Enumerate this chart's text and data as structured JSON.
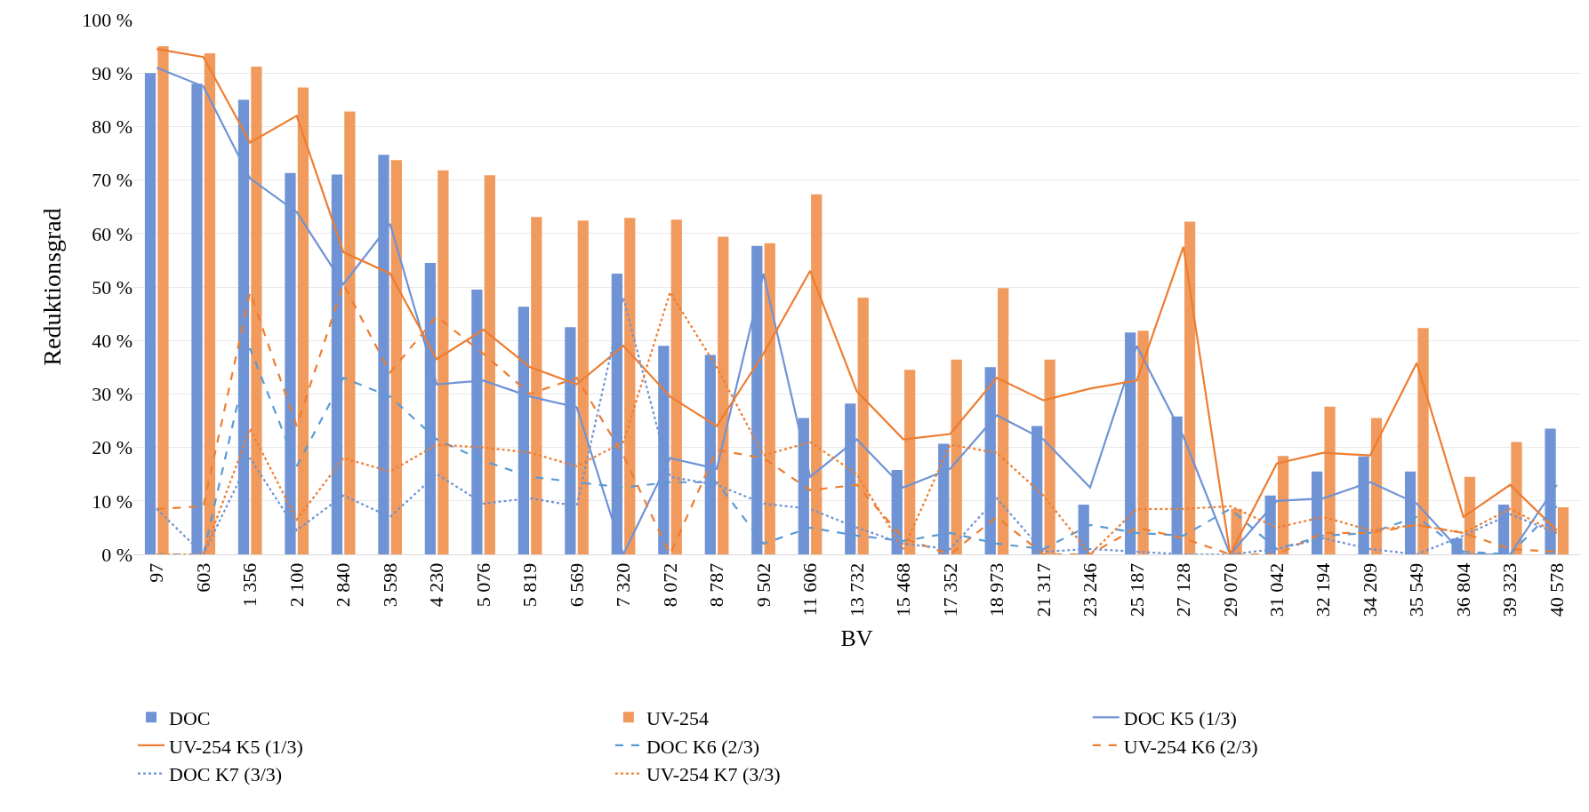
{
  "chart_data": {
    "type": "bar",
    "xlabel": "BV",
    "ylabel": "Reduktionsgrad",
    "categories": [
      "97",
      "603",
      "1 356",
      "2 100",
      "2 840",
      "3 598",
      "4 230",
      "5 076",
      "5 819",
      "6 569",
      "7 320",
      "8 072",
      "8 787",
      "9 502",
      "11 606",
      "13 732",
      "15 468",
      "17 352",
      "18 973",
      "21 317",
      "23 246",
      "25 187",
      "27 128",
      "29 070",
      "31 042",
      "32 194",
      "34 209",
      "35 549",
      "36 804",
      "39 323",
      "40 578"
    ],
    "series": [
      {
        "name": "DOC",
        "color": "#6f93d4",
        "values": [
          90,
          88,
          85,
          71.3,
          71,
          74.7,
          54.5,
          49.5,
          46.3,
          42.5,
          52.5,
          39,
          37.3,
          57.7,
          25.5,
          28.2,
          15.8,
          20.7,
          35,
          24,
          9.3,
          41.5,
          25.8,
          0,
          11,
          15.5,
          18.3,
          15.5,
          3,
          9.3,
          23.5
        ]
      },
      {
        "name": "UV-254",
        "color": "#f19a5e",
        "values": [
          95,
          93.7,
          91.2,
          87.3,
          82.8,
          73.7,
          71.8,
          70.9,
          63.1,
          62.4,
          62.9,
          62.6,
          59.4,
          58.2,
          67.3,
          48,
          34.5,
          36.4,
          49.8,
          36.4,
          0,
          41.8,
          62.2,
          8.5,
          18.4,
          27.6,
          25.5,
          42.3,
          14.5,
          21,
          8.8
        ]
      },
      {
        "name": "DOC K5 (1/3)",
        "type": "line",
        "line_style": "solid",
        "color": "#6f93d4",
        "values": [
          91,
          87.5,
          70.3,
          64,
          50.5,
          61.8,
          31.8,
          32.5,
          29.5,
          27.5,
          0,
          18,
          16,
          52.5,
          14.5,
          21.5,
          12.5,
          16,
          26,
          21.5,
          12.5,
          39,
          22,
          0,
          10,
          10.5,
          13.5,
          9.5,
          0,
          0,
          13
        ]
      },
      {
        "name": "UV-254 K5 (1/3)",
        "type": "line",
        "line_style": "solid",
        "color": "#ed7d31",
        "values": [
          94.5,
          93,
          77,
          82,
          56.5,
          52.5,
          36.5,
          42,
          35,
          31.8,
          39,
          29.5,
          24,
          37.5,
          53,
          30.5,
          21.5,
          22.5,
          33,
          28.8,
          31,
          32.5,
          57.5,
          0,
          17,
          19,
          18.5,
          35.8,
          7,
          13,
          4.5
        ]
      },
      {
        "name": "DOC K6 (2/3)",
        "type": "line",
        "line_style": "dashed",
        "color": "#5b9bd5",
        "values": [
          0,
          0,
          38.5,
          16.5,
          33,
          29.5,
          21.5,
          17.5,
          14.5,
          13.5,
          12.5,
          13.5,
          13.5,
          2,
          5,
          3.5,
          2.5,
          4,
          2,
          1,
          5.5,
          4,
          3.5,
          8.5,
          1,
          3.5,
          4,
          7,
          0.5,
          0,
          9
        ]
      },
      {
        "name": "UV-254 K6 (2/3)",
        "type": "line",
        "line_style": "dashed",
        "color": "#ed7d31",
        "values": [
          8.5,
          9,
          49,
          24,
          50.5,
          34,
          44.5,
          37.5,
          30,
          33,
          18.5,
          0,
          19.5,
          18,
          12,
          13,
          3,
          0,
          7,
          0,
          0,
          5,
          3,
          0,
          0,
          4,
          4,
          5.5,
          4,
          1,
          0.5
        ]
      },
      {
        "name": "DOC K7 (3/3)",
        "type": "line",
        "line_style": "dotted",
        "color": "#6f93d4",
        "values": [
          8.5,
          0,
          18,
          4.5,
          11,
          7,
          15,
          9.5,
          10.5,
          9,
          48,
          14.5,
          13,
          9.5,
          8.5,
          5,
          2,
          1,
          10.5,
          0.5,
          1,
          0.5,
          0,
          0,
          1,
          3,
          1,
          0,
          3.5,
          7.5,
          4
        ]
      },
      {
        "name": "UV-254 K7 (3/3)",
        "type": "line",
        "line_style": "dotted",
        "color": "#ed7d31",
        "values": [
          0,
          0,
          23.5,
          6.5,
          18,
          15.5,
          20.5,
          20,
          19,
          16.5,
          21,
          49,
          35,
          18.5,
          21,
          15,
          1,
          20.5,
          19,
          11,
          0,
          8.5,
          8.5,
          9,
          5,
          7,
          4.5,
          5.5,
          4,
          8.5,
          4
        ]
      }
    ],
    "ylim": [
      0,
      100
    ],
    "yticks": [
      {
        "value": 0,
        "label": "0 %"
      },
      {
        "value": 10,
        "label": "10 %"
      },
      {
        "value": 20,
        "label": "20 %"
      },
      {
        "value": 30,
        "label": "30 %"
      },
      {
        "value": 40,
        "label": "40 %"
      },
      {
        "value": 50,
        "label": "50 %"
      },
      {
        "value": 60,
        "label": "60 %"
      },
      {
        "value": 70,
        "label": "70 %"
      },
      {
        "value": 80,
        "label": "80 %"
      },
      {
        "value": 90,
        "label": "90 %"
      },
      {
        "value": 100,
        "label": "100 %"
      }
    ],
    "grid": "y",
    "legend": "bottom"
  }
}
